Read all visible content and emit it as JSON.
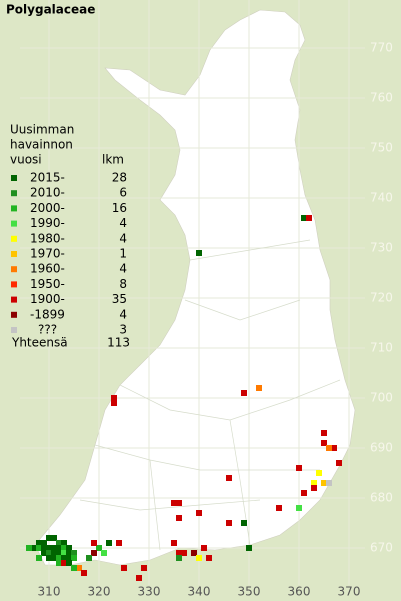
{
  "title": "Polygalaceae",
  "legend": {
    "title": [
      "Uusimman",
      "havainnon",
      "vuosi"
    ],
    "count_header": "lkm",
    "entries": [
      {
        "label": "2015-",
        "count": 28,
        "color": "#006400"
      },
      {
        "label": "2010-",
        "count": 6,
        "color": "#1f8f1f"
      },
      {
        "label": "2000-",
        "count": 16,
        "color": "#22b422"
      },
      {
        "label": "1990-",
        "count": 4,
        "color": "#44e044"
      },
      {
        "label": "1980-",
        "count": 4,
        "color": "#ffff00"
      },
      {
        "label": "1970-",
        "count": 1,
        "color": "#ffc400"
      },
      {
        "label": "1960-",
        "count": 4,
        "color": "#ff7a00"
      },
      {
        "label": "1950-",
        "count": 8,
        "color": "#ff2a00"
      },
      {
        "label": "1900-",
        "count": 35,
        "color": "#cc0000"
      },
      {
        "label": "-1899",
        "count": 4,
        "color": "#8b0000"
      },
      {
        "label": "???",
        "count": 3,
        "color": "#c4c4c4"
      }
    ],
    "total_label": "Yhteensä",
    "total": 113
  },
  "map": {
    "xticks": [
      310,
      320,
      330,
      340,
      350,
      360,
      370
    ],
    "yticks": [
      670,
      680,
      690,
      700,
      710,
      720,
      730,
      740,
      750,
      760,
      770
    ],
    "squares": [
      {
        "x": 361,
        "y": 736,
        "class": 0
      },
      {
        "x": 362,
        "y": 736,
        "class": 8
      },
      {
        "x": 340,
        "y": 729,
        "class": 0
      },
      {
        "x": 352,
        "y": 702,
        "class": 6
      },
      {
        "x": 349,
        "y": 701,
        "class": 8
      },
      {
        "x": 323,
        "y": 700,
        "class": 8
      },
      {
        "x": 323,
        "y": 699,
        "class": 8
      },
      {
        "x": 346,
        "y": 684,
        "class": 8
      },
      {
        "x": 360,
        "y": 686,
        "class": 8
      },
      {
        "x": 365,
        "y": 693,
        "class": 8
      },
      {
        "x": 365,
        "y": 691,
        "class": 8
      },
      {
        "x": 367,
        "y": 690,
        "class": 8
      },
      {
        "x": 366,
        "y": 690,
        "class": 6
      },
      {
        "x": 368,
        "y": 687,
        "class": 8
      },
      {
        "x": 364,
        "y": 685,
        "class": 4
      },
      {
        "x": 365,
        "y": 683,
        "class": 5
      },
      {
        "x": 363,
        "y": 683,
        "class": 4
      },
      {
        "x": 366,
        "y": 683,
        "class": 10
      },
      {
        "x": 363,
        "y": 682,
        "class": 8
      },
      {
        "x": 361,
        "y": 681,
        "class": 8
      },
      {
        "x": 360,
        "y": 678,
        "class": 3
      },
      {
        "x": 356,
        "y": 678,
        "class": 8
      },
      {
        "x": 349,
        "y": 675,
        "class": 0
      },
      {
        "x": 346,
        "y": 675,
        "class": 8
      },
      {
        "x": 350,
        "y": 670,
        "class": 0
      },
      {
        "x": 335,
        "y": 679,
        "class": 8
      },
      {
        "x": 336,
        "y": 679,
        "class": 8
      },
      {
        "x": 336,
        "y": 676,
        "class": 8
      },
      {
        "x": 340,
        "y": 677,
        "class": 8
      },
      {
        "x": 335,
        "y": 671,
        "class": 8
      },
      {
        "x": 336,
        "y": 669,
        "class": 8
      },
      {
        "x": 337,
        "y": 669,
        "class": 8
      },
      {
        "x": 339,
        "y": 669,
        "class": 9
      },
      {
        "x": 341,
        "y": 670,
        "class": 8
      },
      {
        "x": 342,
        "y": 668,
        "class": 8
      },
      {
        "x": 340,
        "y": 668,
        "class": 4
      },
      {
        "x": 336,
        "y": 668,
        "class": 1
      },
      {
        "x": 329,
        "y": 666,
        "class": 8
      },
      {
        "x": 328,
        "y": 664,
        "class": 8
      },
      {
        "x": 325,
        "y": 666,
        "class": 8
      },
      {
        "x": 324,
        "y": 671,
        "class": 8
      },
      {
        "x": 322,
        "y": 671,
        "class": 0
      },
      {
        "x": 320,
        "y": 670,
        "class": 2
      },
      {
        "x": 319,
        "y": 671,
        "class": 8
      },
      {
        "x": 321,
        "y": 669,
        "class": 3
      },
      {
        "x": 319,
        "y": 669,
        "class": 9
      },
      {
        "x": 318,
        "y": 668,
        "class": 1
      },
      {
        "x": 316,
        "y": 666,
        "class": 6
      },
      {
        "x": 317,
        "y": 665,
        "class": 8
      },
      {
        "x": 308,
        "y": 671,
        "class": 0
      },
      {
        "x": 309,
        "y": 671,
        "class": 0
      },
      {
        "x": 310,
        "y": 672,
        "class": 0
      },
      {
        "x": 311,
        "y": 672,
        "class": 0
      },
      {
        "x": 312,
        "y": 671,
        "class": 1
      },
      {
        "x": 313,
        "y": 671,
        "class": 0
      },
      {
        "x": 307,
        "y": 670,
        "class": 0
      },
      {
        "x": 308,
        "y": 670,
        "class": 2
      },
      {
        "x": 309,
        "y": 670,
        "class": 0
      },
      {
        "x": 310,
        "y": 670,
        "class": 0
      },
      {
        "x": 311,
        "y": 670,
        "class": 0
      },
      {
        "x": 312,
        "y": 670,
        "class": 0
      },
      {
        "x": 313,
        "y": 670,
        "class": 2
      },
      {
        "x": 314,
        "y": 670,
        "class": 0
      },
      {
        "x": 309,
        "y": 669,
        "class": 0
      },
      {
        "x": 310,
        "y": 669,
        "class": 1
      },
      {
        "x": 311,
        "y": 669,
        "class": 0
      },
      {
        "x": 312,
        "y": 669,
        "class": 0
      },
      {
        "x": 313,
        "y": 669,
        "class": 3
      },
      {
        "x": 314,
        "y": 669,
        "class": 0
      },
      {
        "x": 315,
        "y": 669,
        "class": 1
      },
      {
        "x": 310,
        "y": 668,
        "class": 0
      },
      {
        "x": 311,
        "y": 668,
        "class": 0
      },
      {
        "x": 312,
        "y": 668,
        "class": 2
      },
      {
        "x": 313,
        "y": 668,
        "class": 0
      },
      {
        "x": 314,
        "y": 668,
        "class": 0
      },
      {
        "x": 315,
        "y": 668,
        "class": 2
      },
      {
        "x": 312,
        "y": 667,
        "class": 2
      },
      {
        "x": 313,
        "y": 667,
        "class": 8
      },
      {
        "x": 314,
        "y": 667,
        "class": 0
      },
      {
        "x": 315,
        "y": 666,
        "class": 2
      },
      {
        "x": 308,
        "y": 668,
        "class": 2
      },
      {
        "x": 306,
        "y": 670,
        "class": 2
      }
    ]
  }
}
